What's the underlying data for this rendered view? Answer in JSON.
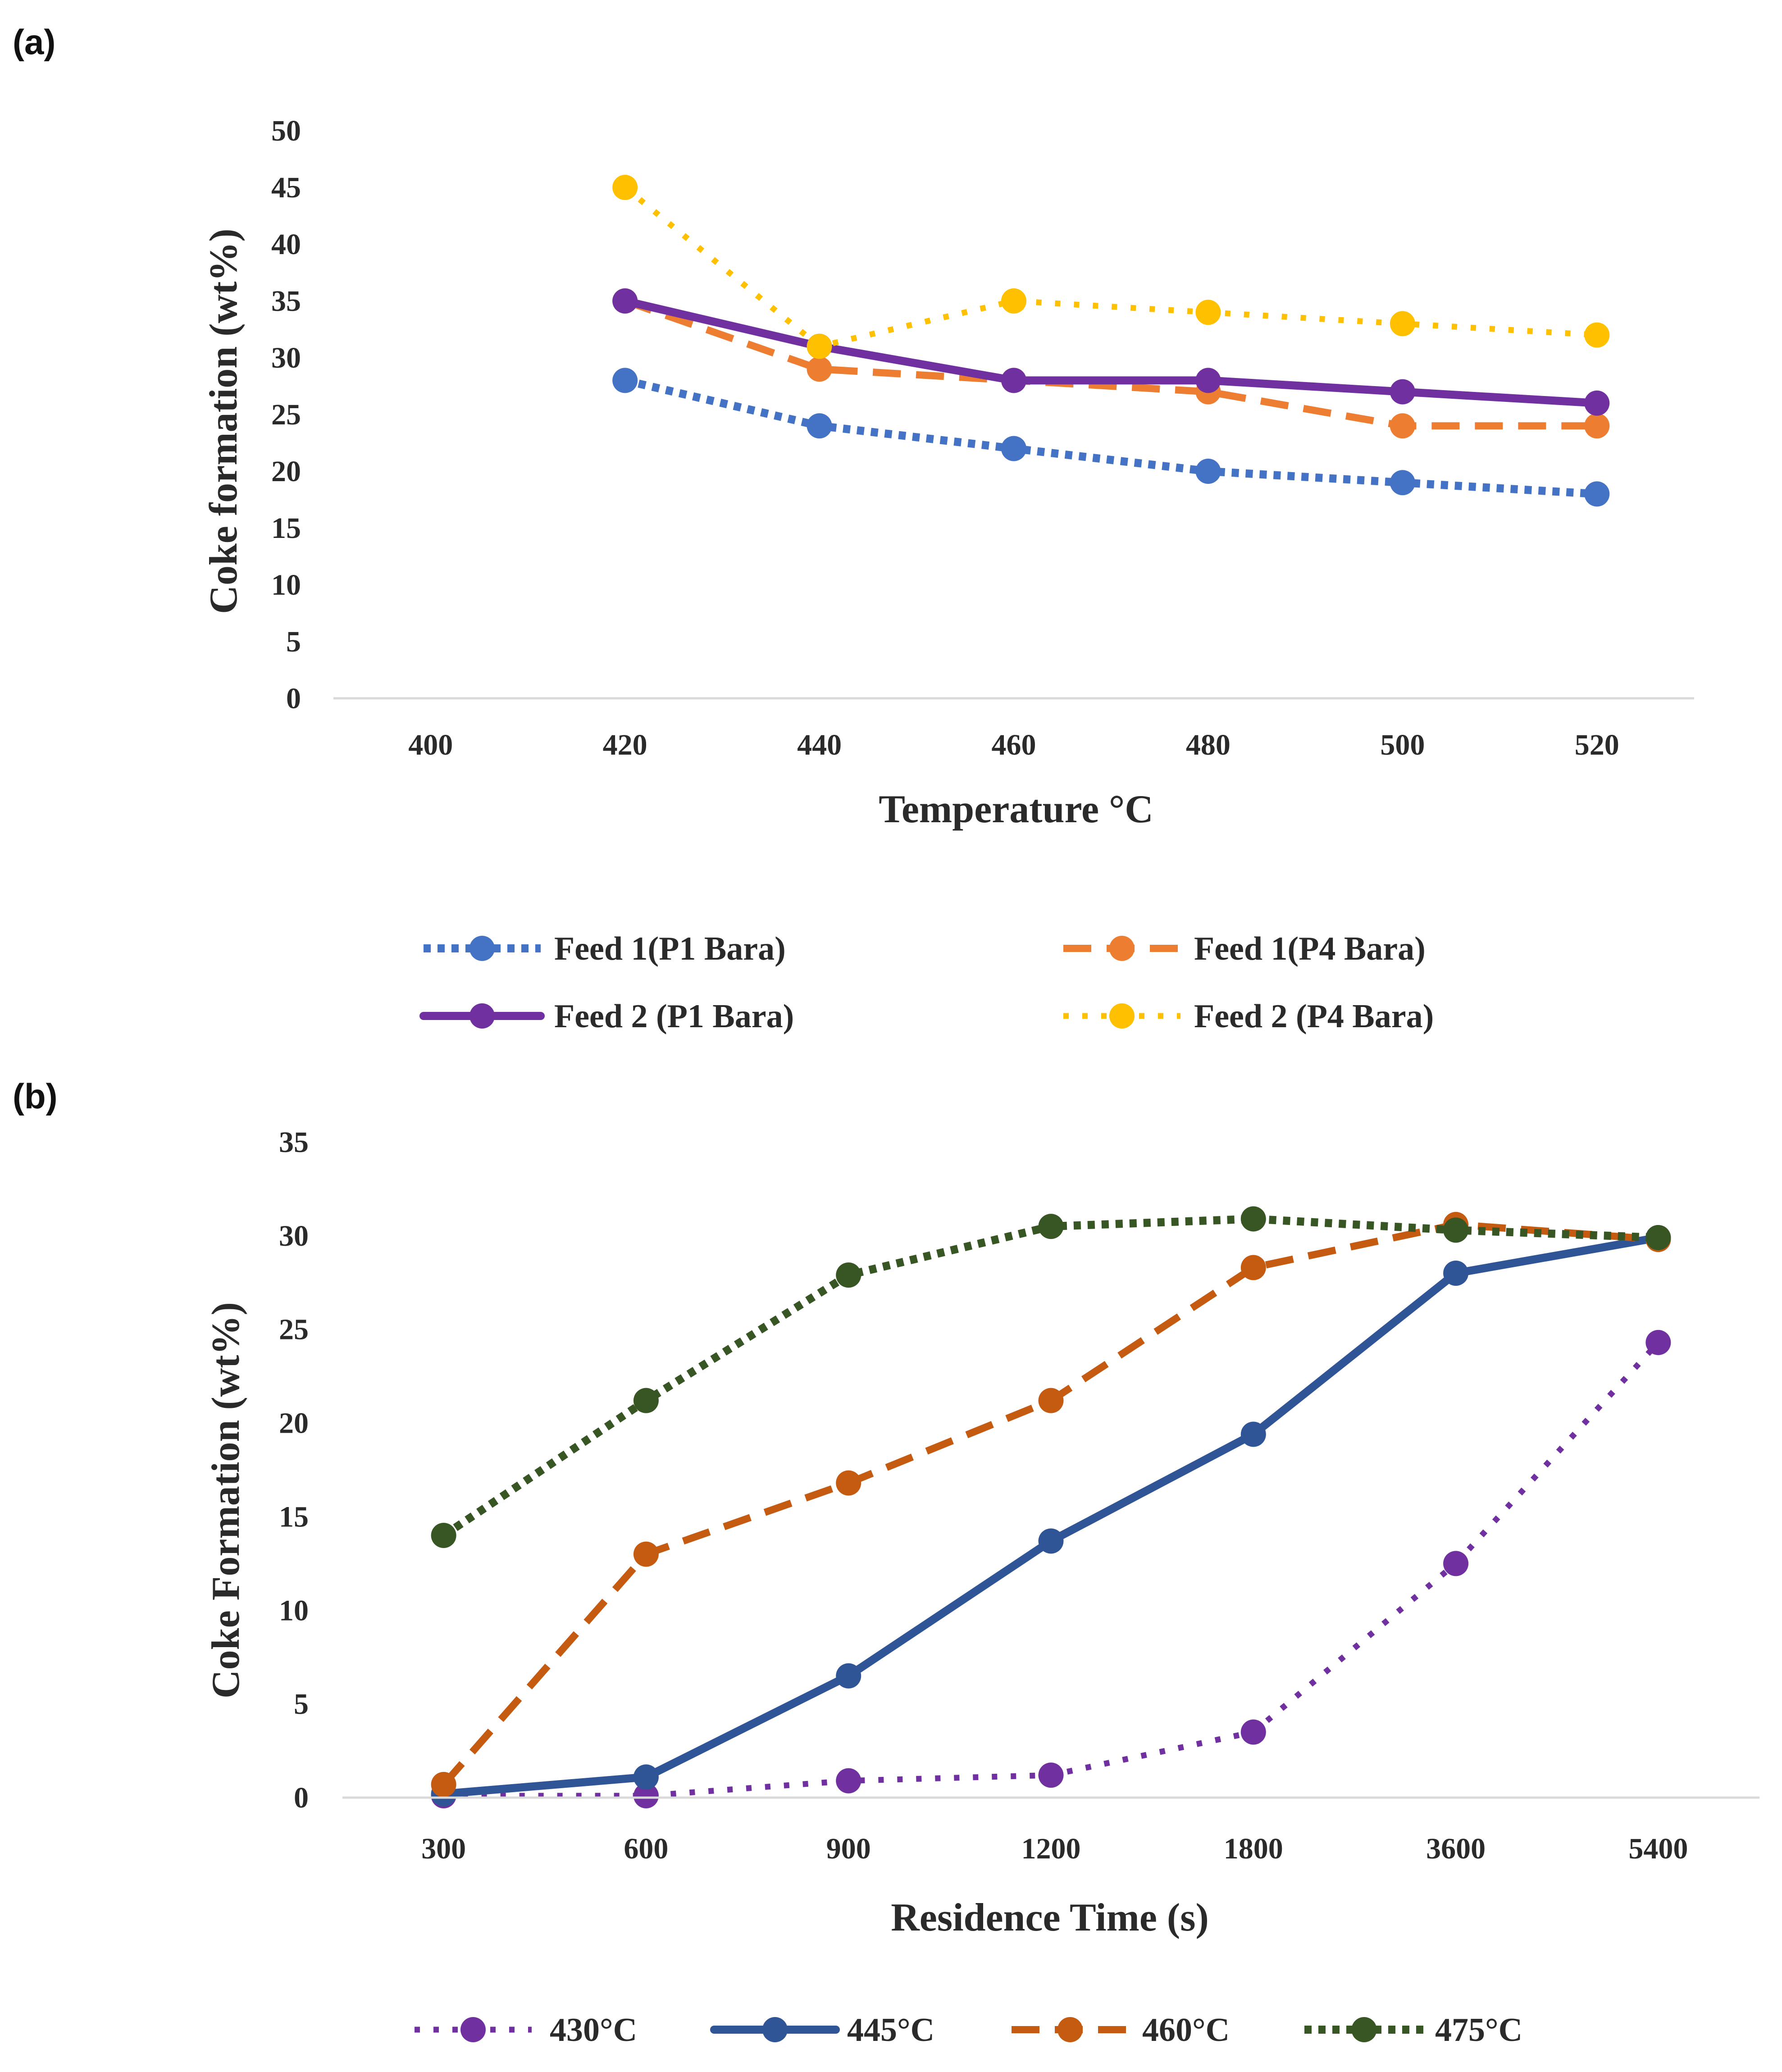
{
  "chart_data": [
    {
      "panel_label": "(a)",
      "type": "line",
      "xlabel": "Temperature °C",
      "ylabel": "Coke formation (wt%)",
      "categories": [
        "400",
        "420",
        "440",
        "460",
        "480",
        "500",
        "520"
      ],
      "ylim": [
        0,
        50
      ],
      "yticks": [
        "0",
        "5",
        "10",
        "15",
        "20",
        "25",
        "30",
        "35",
        "40",
        "45",
        "50"
      ],
      "grid": false,
      "legend_position": "bottom",
      "series": [
        {
          "name": "Feed 1(P1 Bara)",
          "color": "#4472c4",
          "dash": "dotted",
          "values": [
            null,
            28,
            24,
            22,
            20,
            19,
            18
          ]
        },
        {
          "name": "Feed 1(P4 Bara)",
          "color": "#ed7d31",
          "dash": "dashed",
          "values": [
            null,
            35,
            29,
            28,
            27,
            24,
            24
          ]
        },
        {
          "name": "Feed 2 (P1 Bara)",
          "color": "#7030a0",
          "dash": "solid",
          "values": [
            null,
            35,
            31,
            28,
            28,
            27,
            26
          ]
        },
        {
          "name": "Feed 2 (P4 Bara)",
          "color": "#ffc000",
          "dash": "sparse-dotted",
          "values": [
            null,
            45,
            31,
            35,
            34,
            33,
            32
          ]
        }
      ]
    },
    {
      "panel_label": "(b)",
      "type": "line",
      "xlabel": "Residence Time (s)",
      "ylabel": "Coke Formation (wt%)",
      "categories": [
        "300",
        "600",
        "900",
        "1200",
        "1800",
        "3600",
        "5400"
      ],
      "ylim": [
        0,
        35
      ],
      "yticks": [
        "0",
        "5",
        "10",
        "15",
        "20",
        "25",
        "30",
        "35"
      ],
      "grid": false,
      "legend_position": "bottom",
      "series": [
        {
          "name": "430°C",
          "color": "#7030a0",
          "dash": "sparse-dotted",
          "values": [
            0.1,
            0.1,
            0.9,
            1.2,
            3.5,
            12.5,
            24.3
          ]
        },
        {
          "name": "445°C",
          "color": "#2f5597",
          "dash": "solid",
          "values": [
            0.2,
            1.1,
            6.5,
            13.7,
            19.4,
            28.0,
            29.9
          ]
        },
        {
          "name": "460°C",
          "color": "#c55a11",
          "dash": "dashed",
          "values": [
            0.7,
            13.0,
            16.8,
            21.2,
            28.3,
            30.6,
            29.8
          ]
        },
        {
          "name": "475°C",
          "color": "#375623",
          "dash": "dotted",
          "values": [
            14.0,
            21.2,
            27.9,
            30.5,
            30.9,
            30.3,
            29.9
          ]
        }
      ]
    }
  ]
}
